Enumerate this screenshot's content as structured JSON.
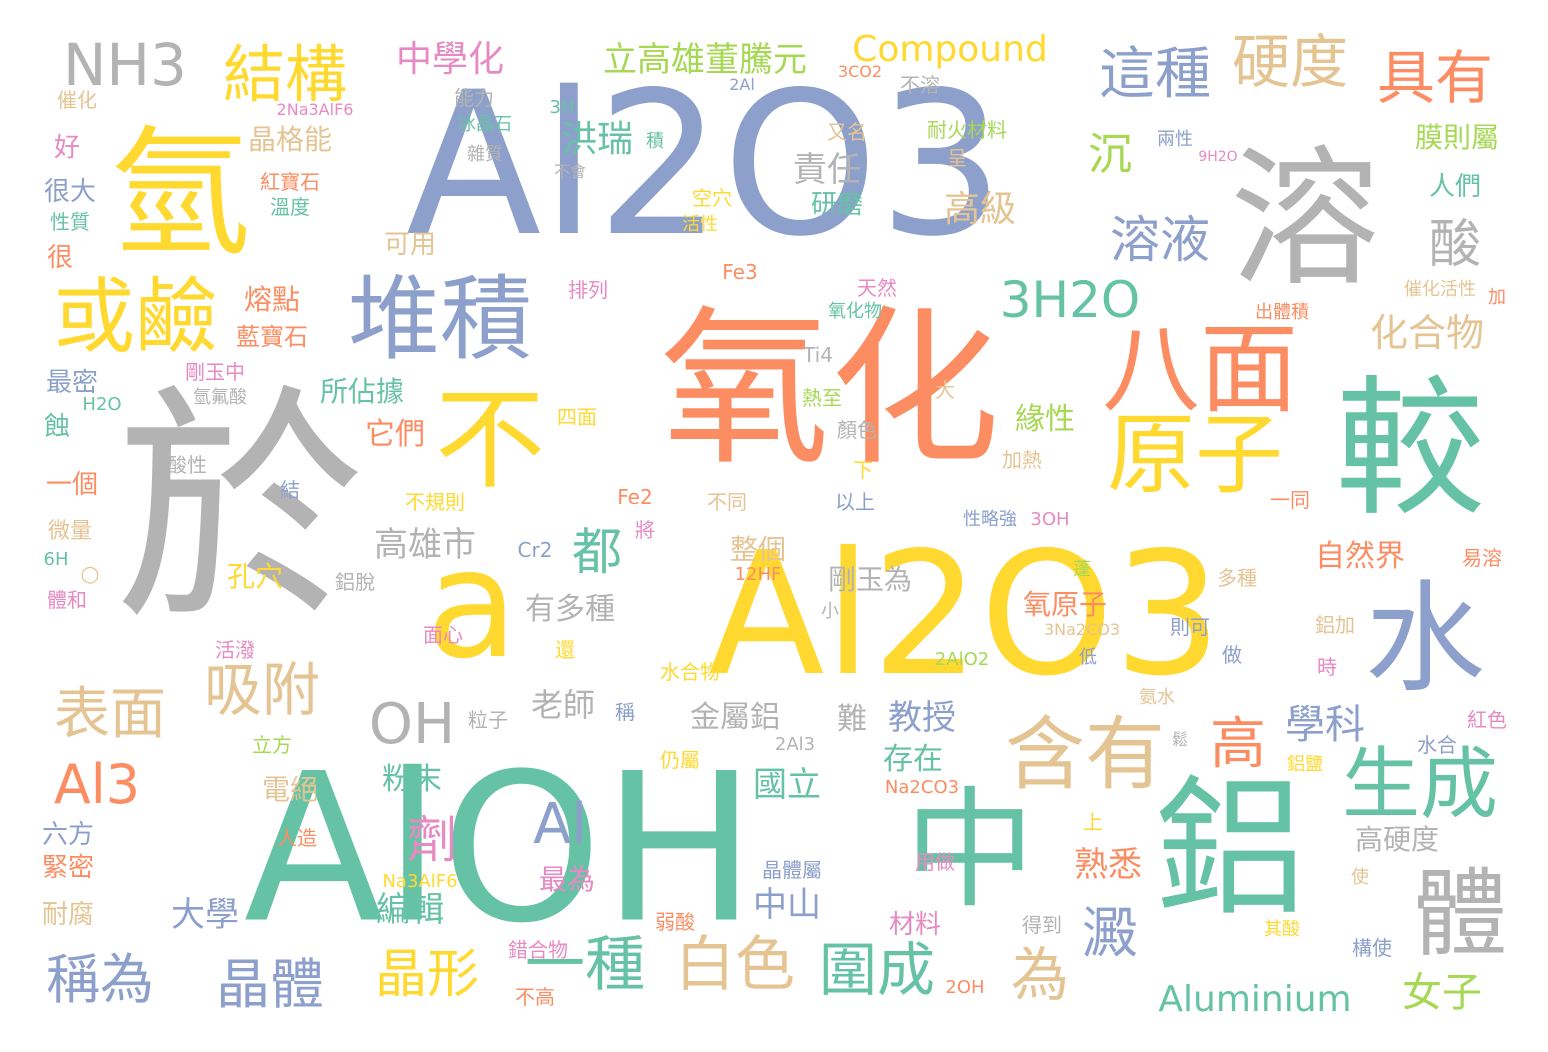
{
  "palette": {
    "green": "#66c2a5",
    "orange": "#fc8d62",
    "blue": "#8da0cb",
    "pink": "#e78ac3",
    "lime": "#a6d854",
    "yellow": "#ffd92f",
    "tan": "#e5c494",
    "gray": "#b3b3b3"
  },
  "words": [
    {
      "text": "Al2O3"
    },
    {
      "text": "氧化"
    },
    {
      "text": "於"
    },
    {
      "text": "Al2O3"
    },
    {
      "text": "AlOH"
    },
    {
      "text": "氫"
    },
    {
      "text": "溶"
    },
    {
      "text": "a"
    },
    {
      "text": "中"
    },
    {
      "text": "鋁"
    },
    {
      "text": "較"
    },
    {
      "text": "水"
    },
    {
      "text": "不"
    },
    {
      "text": "堆積"
    },
    {
      "text": "或鹼"
    },
    {
      "text": "八面"
    },
    {
      "text": "原子"
    },
    {
      "text": "體"
    },
    {
      "text": "含有"
    },
    {
      "text": "生成"
    },
    {
      "text": "結構"
    },
    {
      "text": "NH3"
    },
    {
      "text": "這種"
    },
    {
      "text": "硬度"
    },
    {
      "text": "具有"
    },
    {
      "text": "3H2O"
    },
    {
      "text": "溶液"
    },
    {
      "text": "酸"
    },
    {
      "text": "沉"
    },
    {
      "text": "表面"
    },
    {
      "text": "吸附"
    },
    {
      "text": "OH"
    },
    {
      "text": "Al3"
    },
    {
      "text": "稱為"
    },
    {
      "text": "晶體"
    },
    {
      "text": "晶形"
    },
    {
      "text": "一種"
    },
    {
      "text": "白色"
    },
    {
      "text": "圍成"
    },
    {
      "text": "為"
    },
    {
      "text": "澱"
    },
    {
      "text": "高"
    },
    {
      "text": "學科"
    },
    {
      "text": "Aluminium"
    },
    {
      "text": "女子"
    },
    {
      "text": "Al"
    },
    {
      "text": "劑"
    },
    {
      "text": "都"
    },
    {
      "text": "Compound"
    },
    {
      "text": "立高雄董騰元"
    },
    {
      "text": "中學化"
    },
    {
      "text": "洪瑞"
    },
    {
      "text": "責任"
    },
    {
      "text": "研磨"
    },
    {
      "text": "高級"
    },
    {
      "text": "化合物"
    },
    {
      "text": "高雄市"
    },
    {
      "text": "老師"
    },
    {
      "text": "金屬鋁"
    },
    {
      "text": "難"
    },
    {
      "text": "教授"
    },
    {
      "text": "存在"
    },
    {
      "text": "國立"
    },
    {
      "text": "中山"
    },
    {
      "text": "大學"
    },
    {
      "text": "編輯"
    },
    {
      "text": "熟悉"
    },
    {
      "text": "自然界"
    },
    {
      "text": "高硬度"
    },
    {
      "text": "晶格能"
    },
    {
      "text": "熔點"
    },
    {
      "text": "藍寶石"
    },
    {
      "text": "所佔據"
    },
    {
      "text": "它們"
    },
    {
      "text": "緣性"
    },
    {
      "text": "剛玉為"
    },
    {
      "text": "氧原子"
    },
    {
      "text": "有多種"
    },
    {
      "text": "整個"
    },
    {
      "text": "孔穴"
    },
    {
      "text": "粉末"
    },
    {
      "text": "電絕"
    },
    {
      "text": "六方"
    },
    {
      "text": "緊密"
    },
    {
      "text": "耐腐"
    },
    {
      "text": "膜則屬"
    },
    {
      "text": "人們"
    },
    {
      "text": "耐火材料"
    },
    {
      "text": "可用"
    },
    {
      "text": "紅寶石"
    },
    {
      "text": "溫度"
    },
    {
      "text": "很大"
    },
    {
      "text": "性質"
    },
    {
      "text": "很"
    },
    {
      "text": "好"
    },
    {
      "text": "最密"
    },
    {
      "text": "一個"
    },
    {
      "text": "蝕"
    },
    {
      "text": "微量"
    },
    {
      "text": "6H"
    },
    {
      "text": "體和"
    },
    {
      "text": "H2O"
    },
    {
      "text": "酸性"
    },
    {
      "text": "結"
    },
    {
      "text": "剛玉中"
    },
    {
      "text": "氫氟酸"
    },
    {
      "text": "排列"
    },
    {
      "text": "Fe3"
    },
    {
      "text": "天然"
    },
    {
      "text": "氧化物"
    },
    {
      "text": "Ti4"
    },
    {
      "text": "熱至"
    },
    {
      "text": "大"
    },
    {
      "text": "四面"
    },
    {
      "text": "顏色"
    },
    {
      "text": "下"
    },
    {
      "text": "以上"
    },
    {
      "text": "Fe2"
    },
    {
      "text": "不同"
    },
    {
      "text": "不規則"
    },
    {
      "text": "加熱"
    },
    {
      "text": "性略強"
    },
    {
      "text": "3OH"
    },
    {
      "text": "一同"
    },
    {
      "text": "Cr2"
    },
    {
      "text": "將"
    },
    {
      "text": "12HF"
    },
    {
      "text": "鋁脫"
    },
    {
      "text": "活潑"
    },
    {
      "text": "面心"
    },
    {
      "text": "還"
    },
    {
      "text": "水合物"
    },
    {
      "text": "粒子"
    },
    {
      "text": "稱"
    },
    {
      "text": "立方"
    },
    {
      "text": "2Al3"
    },
    {
      "text": "仍屬"
    },
    {
      "text": "Na2CO3"
    },
    {
      "text": "人造"
    },
    {
      "text": "Na3AlF6"
    },
    {
      "text": "最為"
    },
    {
      "text": "晶體屬"
    },
    {
      "text": "用做"
    },
    {
      "text": "材料"
    },
    {
      "text": "得到"
    },
    {
      "text": "其酸"
    },
    {
      "text": "構使"
    },
    {
      "text": "錯合物"
    },
    {
      "text": "弱酸"
    },
    {
      "text": "不高"
    },
    {
      "text": "2OH"
    },
    {
      "text": "上"
    },
    {
      "text": "多種"
    },
    {
      "text": "鋁加"
    },
    {
      "text": "時"
    },
    {
      "text": "則可"
    },
    {
      "text": "做"
    },
    {
      "text": "低"
    },
    {
      "text": "3Na2CO3"
    },
    {
      "text": "蓬"
    },
    {
      "text": "小"
    },
    {
      "text": "2AlO2"
    },
    {
      "text": "氨水"
    },
    {
      "text": "鬆"
    },
    {
      "text": "紅色"
    },
    {
      "text": "水合"
    },
    {
      "text": "鋁鹽"
    },
    {
      "text": "使"
    },
    {
      "text": "易溶"
    },
    {
      "text": "○"
    },
    {
      "text": "催化"
    },
    {
      "text": "2Na3AlF6"
    },
    {
      "text": "能力"
    },
    {
      "text": "冰晶石"
    },
    {
      "text": "雜質"
    },
    {
      "text": "3H"
    },
    {
      "text": "積"
    },
    {
      "text": "不會"
    },
    {
      "text": "2Al"
    },
    {
      "text": "3CO2"
    },
    {
      "text": "不溶"
    },
    {
      "text": "又名"
    },
    {
      "text": "呈"
    },
    {
      "text": "兩性"
    },
    {
      "text": "9H2O"
    },
    {
      "text": "空穴"
    },
    {
      "text": "活性"
    },
    {
      "text": "催化活性"
    },
    {
      "text": "加"
    },
    {
      "text": "出體積"
    }
  ]
}
